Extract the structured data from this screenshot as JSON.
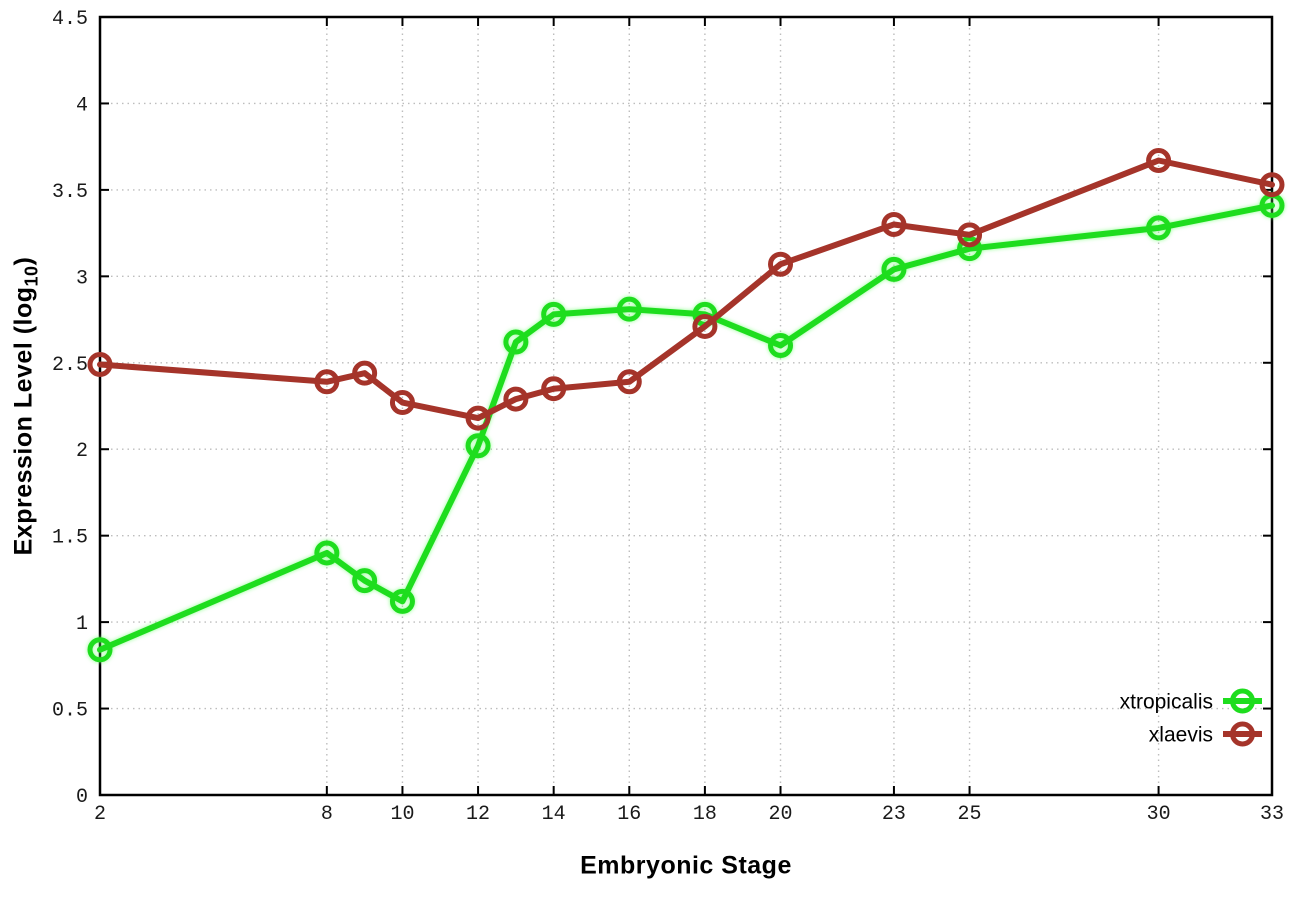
{
  "figure": {
    "xlabel": "Embryonic Stage",
    "ylabel_prefix": "Expression Level (log",
    "ylabel_sub": "10",
    "ylabel_suffix": ")"
  },
  "chart_data": {
    "type": "line",
    "title": "",
    "xlabel": "Embryonic Stage",
    "ylabel": "Expression Level (log10)",
    "x": [
      2,
      8,
      9,
      10,
      12,
      13,
      14,
      16,
      18,
      20,
      23,
      25,
      30,
      33
    ],
    "series": [
      {
        "name": "xtropicalis",
        "color": "#1edd1e",
        "values": [
          0.84,
          1.4,
          1.24,
          1.12,
          2.02,
          2.62,
          2.78,
          2.81,
          2.78,
          2.6,
          3.04,
          3.16,
          3.28,
          3.41
        ]
      },
      {
        "name": "xlaevis",
        "color": "#a5342a",
        "values": [
          2.49,
          2.39,
          2.44,
          2.27,
          2.18,
          2.29,
          2.35,
          2.39,
          2.71,
          3.07,
          3.3,
          3.24,
          3.67,
          3.53
        ]
      }
    ],
    "xlim": [
      2,
      33
    ],
    "ylim": [
      0,
      4.5
    ],
    "x_ticks": {
      "values": [
        2,
        8,
        10,
        12,
        14,
        16,
        18,
        20,
        23,
        25,
        30,
        33
      ],
      "labels": [
        "2",
        "8",
        "10",
        "12",
        "14",
        "16",
        "18",
        "20",
        "23",
        "25",
        "30",
        "33"
      ]
    },
    "y_ticks": {
      "values": [
        0,
        0.5,
        1,
        1.5,
        2,
        2.5,
        3,
        3.5,
        4,
        4.5
      ],
      "labels": [
        "0",
        "0.5",
        "1",
        "1.5",
        "2",
        "2.5",
        "3",
        "3.5",
        "4",
        "4.5"
      ]
    },
    "grid": true,
    "legend_position": "bottom-right",
    "legend_entries": [
      "xtropicalis",
      "xlaevis"
    ],
    "colors": {
      "grid": "#bdbdbd",
      "axis": "#000000",
      "tick_text": "#1a1a1a",
      "background": "#ffffff"
    }
  }
}
